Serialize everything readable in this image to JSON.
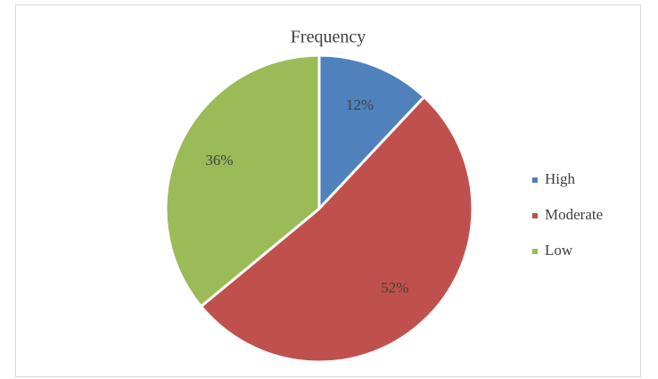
{
  "chart_data": {
    "type": "pie",
    "title": "Frequency",
    "categories": [
      "High",
      "Moderate",
      "Low"
    ],
    "values": [
      12,
      52,
      36
    ],
    "value_labels": [
      "12%",
      "52%",
      "36%"
    ],
    "colors": [
      "#4f81bd",
      "#c0504d",
      "#9bbb59"
    ],
    "legend": "right"
  }
}
